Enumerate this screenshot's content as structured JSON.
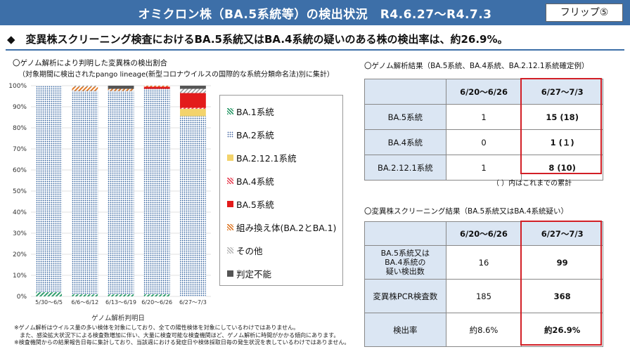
{
  "header": {
    "title": "オミクロン株（BA.5系統等）の検出状況　R4.6.27～R4.7.3",
    "flip_label": "フリップ⑤"
  },
  "headline": "◆　変異株スクリーニング検査におけるBA.5系統又はBA.4系統の疑いのある株の検出率は、約26.9%。",
  "chart_section": {
    "heading": "〇ゲノム解析により判明した変異株の検出割合",
    "subheading": "（対象期間に検出されたpango lineage(新型コロナウイルスの国際的な系統分類命名法)別に集計）"
  },
  "chart_data": {
    "type": "bar",
    "stacked": true,
    "categories": [
      "5/30～6/5",
      "6/6～6/12",
      "6/13～6/19",
      "6/20～6/26",
      "6/27～7/3"
    ],
    "xlabel": "ゲノム解析判明日",
    "ylabel": "",
    "ylim": [
      0,
      100
    ],
    "yticks": [
      "0%",
      "10%",
      "20%",
      "30%",
      "40%",
      "50%",
      "60%",
      "70%",
      "80%",
      "90%",
      "100%"
    ],
    "legend_position": "right",
    "series": [
      {
        "name": "BA.1系統",
        "color": "#2e9b6b",
        "values": [
          2,
          1,
          1,
          1,
          0
        ]
      },
      {
        "name": "BA.2系統",
        "color": "#3a5d9c",
        "values": [
          98,
          96.5,
          96.5,
          97.5,
          85.5
        ]
      },
      {
        "name": "BA.2.12.1系統",
        "color": "#f3d36b",
        "values": [
          0,
          0,
          0,
          0,
          3.5
        ]
      },
      {
        "name": "BA.4系統",
        "color": "#e8485a",
        "values": [
          0,
          0,
          0,
          0,
          0.5
        ]
      },
      {
        "name": "BA.5系統",
        "color": "#e31b1b",
        "values": [
          0,
          0,
          0,
          1,
          7
        ]
      },
      {
        "name": "組み換え体(BA.2とBA.1)",
        "color": "#e07b2a",
        "values": [
          0,
          2,
          1,
          0.5,
          0
        ]
      },
      {
        "name": "その他",
        "color": "#b9b9b9",
        "values": [
          0,
          0.5,
          0,
          0,
          2
        ]
      },
      {
        "name": "判定不能",
        "color": "#555555",
        "values": [
          0,
          0,
          1.5,
          0,
          1.5
        ]
      }
    ]
  },
  "footnotes": [
    "※ゲノム解析はウイルス量の多い検体を対象にしており、全ての陽性検体を対象にしているわけではありません。",
    "　また、感染拡大状況下による検査数増加に伴い、大量に検査可能な検査機関ほど、ゲノム解析に時間がかかる傾向にあります。",
    "※検査機関からの結果報告日毎に集計しており、当該週における発症日や検体採取日毎の発生状況を表しているわけではありません。"
  ],
  "genome_table": {
    "heading": "〇ゲノム解析結果（BA.5系統、BA.4系統、BA.2.12.1系統確定例）",
    "columns": [
      "",
      "6/20～6/26",
      "6/27～7/3"
    ],
    "rows": [
      {
        "label": "BA.5系統",
        "prev": "1",
        "curr": "15 (18)"
      },
      {
        "label": "BA.4系統",
        "prev": "0",
        "curr": "1 (１)"
      },
      {
        "label": "BA.2.12.1系統",
        "prev": "1",
        "curr": "8 (10)"
      }
    ],
    "note": "（ ）内はこれまでの累計"
  },
  "screening_table": {
    "heading": "〇変異株スクリーニング結果（BA.5系統又はBA.4系統疑い）",
    "columns": [
      "",
      "6/20～6/26",
      "6/27～7/3"
    ],
    "rows": [
      {
        "label": "BA.5系統又は\nBA.4系統の\n疑い検出数",
        "prev": "16",
        "curr": "99"
      },
      {
        "label": "変異株PCR検査数",
        "prev": "185",
        "curr": "368"
      },
      {
        "label": "検出率",
        "prev": "約8.6%",
        "curr": "約26.9%"
      }
    ]
  },
  "colors": {
    "title_bar": "#3d6fa8",
    "highlight_frame": "#d21f26",
    "table_header_fill": "#dbe6f3"
  }
}
